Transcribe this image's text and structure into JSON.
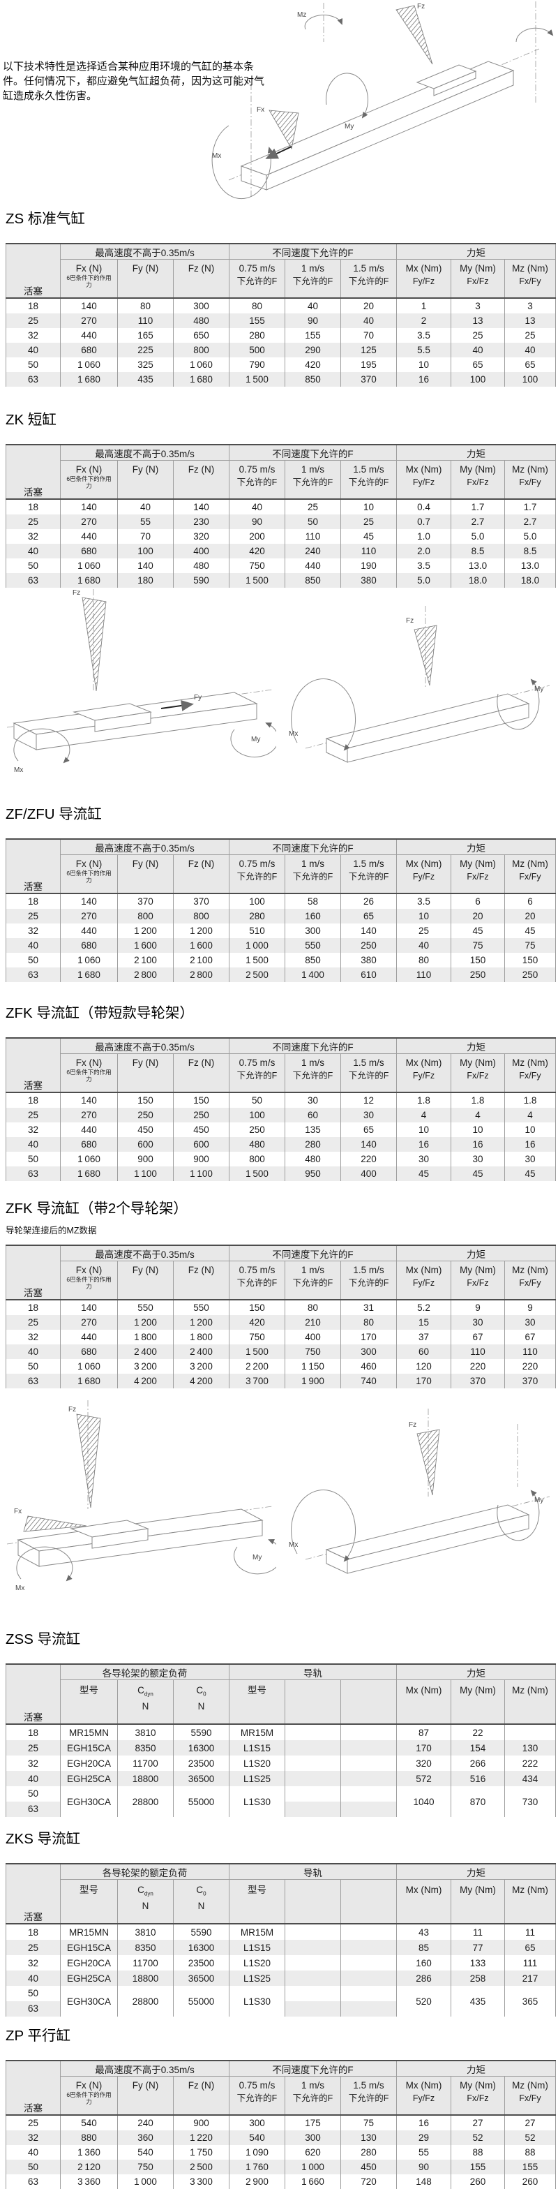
{
  "intro": "以下技术特性是选择适合某种应用环境的气缸的基本条件。任何情况下，都应避免气缸超负荷，因为这可能对气缸造成永久性伤害。",
  "drawing_labels": {
    "fx": "Fx",
    "fy": "Fy",
    "fz": "Fz",
    "mx": "Mx",
    "my": "My",
    "mz": "Mz"
  },
  "force_headers": {
    "piston": "活塞",
    "group1": "最高速度不高于0.35m/s",
    "group2": "不同速度下允许的F",
    "group3": "力矩",
    "fx": "Fx (N)",
    "fx_note": "6巴条件下的作用力",
    "fy": "Fy (N)",
    "fz": "Fz (N)",
    "v075": "0.75 m/s",
    "v1": "1 m/s",
    "v15": "1.5 m/s",
    "allowed": "下允许的F",
    "mx": "Mx (Nm)",
    "mx_sub": "Fy/Fz",
    "my": "My (Nm)",
    "my_sub": "Fx/Fz",
    "mz": "Mz (Nm)",
    "mz_sub": "Fx/Fy"
  },
  "guide_headers": {
    "piston": "活塞",
    "group1": "各导轮架的额定负荷",
    "group2": "导轨",
    "group3": "力矩",
    "model": "型号",
    "c_letter": "C",
    "cdyn_sub": "dyn",
    "c0_sub": "0",
    "unit": "N",
    "model2": "型号",
    "mx": "Mx (Nm)",
    "my": "My (Nm)",
    "mz": "Mz (Nm)"
  },
  "sections": [
    {
      "id": "zs",
      "type": "force",
      "title": "ZS 标准气缸",
      "rows": [
        [
          "18",
          "140",
          "80",
          "300",
          "80",
          "40",
          "20",
          "1",
          "3",
          "3"
        ],
        [
          "25",
          "270",
          "110",
          "480",
          "155",
          "90",
          "40",
          "2",
          "13",
          "13"
        ],
        [
          "32",
          "440",
          "165",
          "650",
          "280",
          "155",
          "70",
          "3.5",
          "25",
          "25"
        ],
        [
          "40",
          "680",
          "225",
          "800",
          "500",
          "290",
          "125",
          "5.5",
          "40",
          "40"
        ],
        [
          "50",
          "1 060",
          "325",
          "1 060",
          "790",
          "420",
          "195",
          "10",
          "65",
          "65"
        ],
        [
          "63",
          "1 680",
          "435",
          "1 680",
          "1 500",
          "850",
          "370",
          "16",
          "100",
          "100"
        ]
      ]
    },
    {
      "id": "zk",
      "type": "force",
      "title": "ZK 短缸",
      "rows": [
        [
          "18",
          "140",
          "40",
          "140",
          "40",
          "25",
          "10",
          "0.4",
          "1.7",
          "1.7"
        ],
        [
          "25",
          "270",
          "55",
          "230",
          "90",
          "50",
          "25",
          "0.7",
          "2.7",
          "2.7"
        ],
        [
          "32",
          "440",
          "70",
          "320",
          "200",
          "110",
          "45",
          "1.0",
          "5.0",
          "5.0"
        ],
        [
          "40",
          "680",
          "100",
          "400",
          "420",
          "240",
          "110",
          "2.0",
          "8.5",
          "8.5"
        ],
        [
          "50",
          "1 060",
          "140",
          "480",
          "750",
          "440",
          "190",
          "3.5",
          "13.0",
          "13.0"
        ],
        [
          "63",
          "1 680",
          "180",
          "590",
          "1 500",
          "850",
          "380",
          "5.0",
          "18.0",
          "18.0"
        ]
      ]
    },
    {
      "id": "zf",
      "type": "force",
      "title": "ZF/ZFU 导流缸",
      "rows": [
        [
          "18",
          "140",
          "370",
          "370",
          "100",
          "58",
          "26",
          "3.5",
          "6",
          "6"
        ],
        [
          "25",
          "270",
          "800",
          "800",
          "280",
          "160",
          "65",
          "10",
          "20",
          "20"
        ],
        [
          "32",
          "440",
          "1 200",
          "1 200",
          "510",
          "300",
          "140",
          "25",
          "45",
          "45"
        ],
        [
          "40",
          "680",
          "1 600",
          "1 600",
          "1 000",
          "550",
          "250",
          "40",
          "75",
          "75"
        ],
        [
          "50",
          "1 060",
          "2 100",
          "2 100",
          "1 500",
          "850",
          "380",
          "80",
          "150",
          "150"
        ],
        [
          "63",
          "1 680",
          "2 800",
          "2 800",
          "2 500",
          "1 400",
          "610",
          "110",
          "250",
          "250"
        ]
      ]
    },
    {
      "id": "zfk1",
      "type": "force",
      "title": "ZFK 导流缸（带短款导轮架）",
      "rows": [
        [
          "18",
          "140",
          "150",
          "150",
          "50",
          "30",
          "12",
          "1.8",
          "1.8",
          "1.8"
        ],
        [
          "25",
          "270",
          "250",
          "250",
          "100",
          "60",
          "30",
          "4",
          "4",
          "4"
        ],
        [
          "32",
          "440",
          "450",
          "450",
          "250",
          "135",
          "65",
          "10",
          "10",
          "10"
        ],
        [
          "40",
          "680",
          "600",
          "600",
          "480",
          "280",
          "140",
          "16",
          "16",
          "16"
        ],
        [
          "50",
          "1 060",
          "900",
          "900",
          "800",
          "480",
          "220",
          "30",
          "30",
          "30"
        ],
        [
          "63",
          "1 680",
          "1 100",
          "1 100",
          "1 500",
          "950",
          "400",
          "45",
          "45",
          "45"
        ]
      ]
    },
    {
      "id": "zfk2",
      "type": "force",
      "title": "ZFK 导流缸（带2个导轮架）",
      "note": "导轮架连接后的MZ数据",
      "rows": [
        [
          "18",
          "140",
          "550",
          "550",
          "150",
          "80",
          "31",
          "5.2",
          "9",
          "9"
        ],
        [
          "25",
          "270",
          "1 200",
          "1 200",
          "420",
          "210",
          "80",
          "15",
          "30",
          "30"
        ],
        [
          "32",
          "440",
          "1 800",
          "1 800",
          "750",
          "400",
          "170",
          "37",
          "67",
          "67"
        ],
        [
          "40",
          "680",
          "2 400",
          "2 400",
          "1 500",
          "750",
          "300",
          "60",
          "110",
          "110"
        ],
        [
          "50",
          "1 060",
          "3 200",
          "3 200",
          "2 200",
          "1 150",
          "460",
          "120",
          "220",
          "220"
        ],
        [
          "63",
          "1 680",
          "4 200",
          "4 200",
          "3 700",
          "1 900",
          "740",
          "170",
          "370",
          "370"
        ]
      ]
    },
    {
      "id": "zss",
      "type": "guide",
      "title": "ZSS 导流缸",
      "rows": [
        [
          "18",
          "MR15MN",
          "3810",
          "5590",
          "MR15M",
          "",
          "",
          "87",
          "22",
          ""
        ],
        [
          "25",
          "EGH15CA",
          "8350",
          "16300",
          "L1S15",
          "",
          "",
          "170",
          "154",
          "130"
        ],
        [
          "32",
          "EGH20CA",
          "11700",
          "23500",
          "L1S20",
          "",
          "",
          "320",
          "266",
          "222"
        ],
        [
          "40",
          "EGH25CA",
          "18800",
          "36500",
          "L1S25",
          "",
          "",
          "572",
          "516",
          "434"
        ],
        {
          "pistons": [
            "50",
            "63"
          ],
          "cells": [
            "EGH30CA",
            "28800",
            "55000",
            "L1S30",
            "",
            "",
            "1040",
            "870",
            "730"
          ]
        }
      ]
    },
    {
      "id": "zks",
      "type": "guide",
      "title": "ZKS 导流缸",
      "rows": [
        [
          "18",
          "MR15MN",
          "3810",
          "5590",
          "MR15M",
          "",
          "",
          "43",
          "11",
          "11"
        ],
        [
          "25",
          "EGH15CA",
          "8350",
          "16300",
          "L1S15",
          "",
          "",
          "85",
          "77",
          "65"
        ],
        [
          "32",
          "EGH20CA",
          "11700",
          "23500",
          "L1S20",
          "",
          "",
          "160",
          "133",
          "111"
        ],
        [
          "40",
          "EGH25CA",
          "18800",
          "36500",
          "L1S25",
          "",
          "",
          "286",
          "258",
          "217"
        ],
        {
          "pistons": [
            "50",
            "63"
          ],
          "cells": [
            "EGH30CA",
            "28800",
            "55000",
            "L1S30",
            "",
            "",
            "520",
            "435",
            "365"
          ]
        }
      ]
    },
    {
      "id": "zp",
      "type": "force",
      "title": "ZP 平行缸",
      "rows": [
        [
          "25",
          "540",
          "240",
          "900",
          "300",
          "175",
          "75",
          "16",
          "27",
          "27"
        ],
        [
          "32",
          "880",
          "360",
          "1 220",
          "540",
          "300",
          "130",
          "29",
          "52",
          "52"
        ],
        [
          "40",
          "1 360",
          "540",
          "1 750",
          "1 090",
          "620",
          "280",
          "55",
          "88",
          "88"
        ],
        [
          "50",
          "2 120",
          "750",
          "2 500",
          "1 760",
          "1 000",
          "450",
          "90",
          "155",
          "155"
        ],
        [
          "63",
          "3 360",
          "1 000",
          "3 300",
          "2 900",
          "1 660",
          "720",
          "148",
          "260",
          "260"
        ]
      ]
    }
  ]
}
